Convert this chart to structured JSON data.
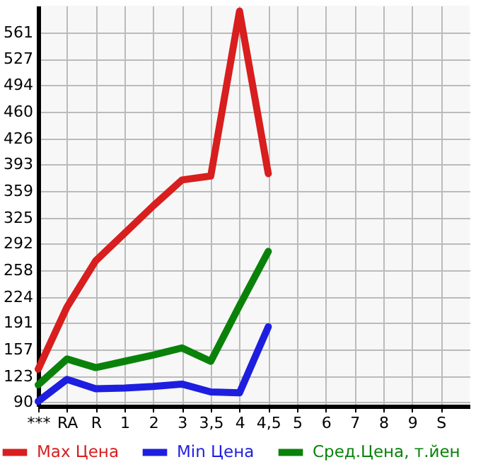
{
  "chart_data": {
    "type": "line",
    "categories": [
      "***",
      "RA",
      "R",
      "1",
      "2",
      "3",
      "3,5",
      "4",
      "4,5",
      "5",
      "6",
      "7",
      "8",
      "9",
      "S"
    ],
    "series": [
      {
        "name": "Max Цена",
        "color": "#d81e1e",
        "values": [
          132,
          211,
          270,
          305,
          340,
          373,
          378,
          588,
          381,
          null,
          null,
          null,
          null,
          null,
          null
        ]
      },
      {
        "name": "Min Цена",
        "color": "#1e1ee0",
        "values": [
          91,
          119,
          107,
          108,
          110,
          113,
          103,
          102,
          186,
          null,
          null,
          null,
          null,
          null,
          null
        ]
      },
      {
        "name": "Сред.Цена, т.йен",
        "color": "#0a820a",
        "values": [
          112,
          145,
          134,
          142,
          150,
          159,
          142,
          213,
          282,
          null,
          null,
          null,
          null,
          null,
          null
        ]
      }
    ],
    "ylim": [
      85,
      595
    ],
    "yticks": [
      90,
      123,
      157,
      191,
      224,
      258,
      292,
      325,
      359,
      393,
      426,
      460,
      494,
      527,
      561
    ],
    "grid": true,
    "legend": "bottom",
    "line_style": "solid",
    "marker": "none"
  }
}
